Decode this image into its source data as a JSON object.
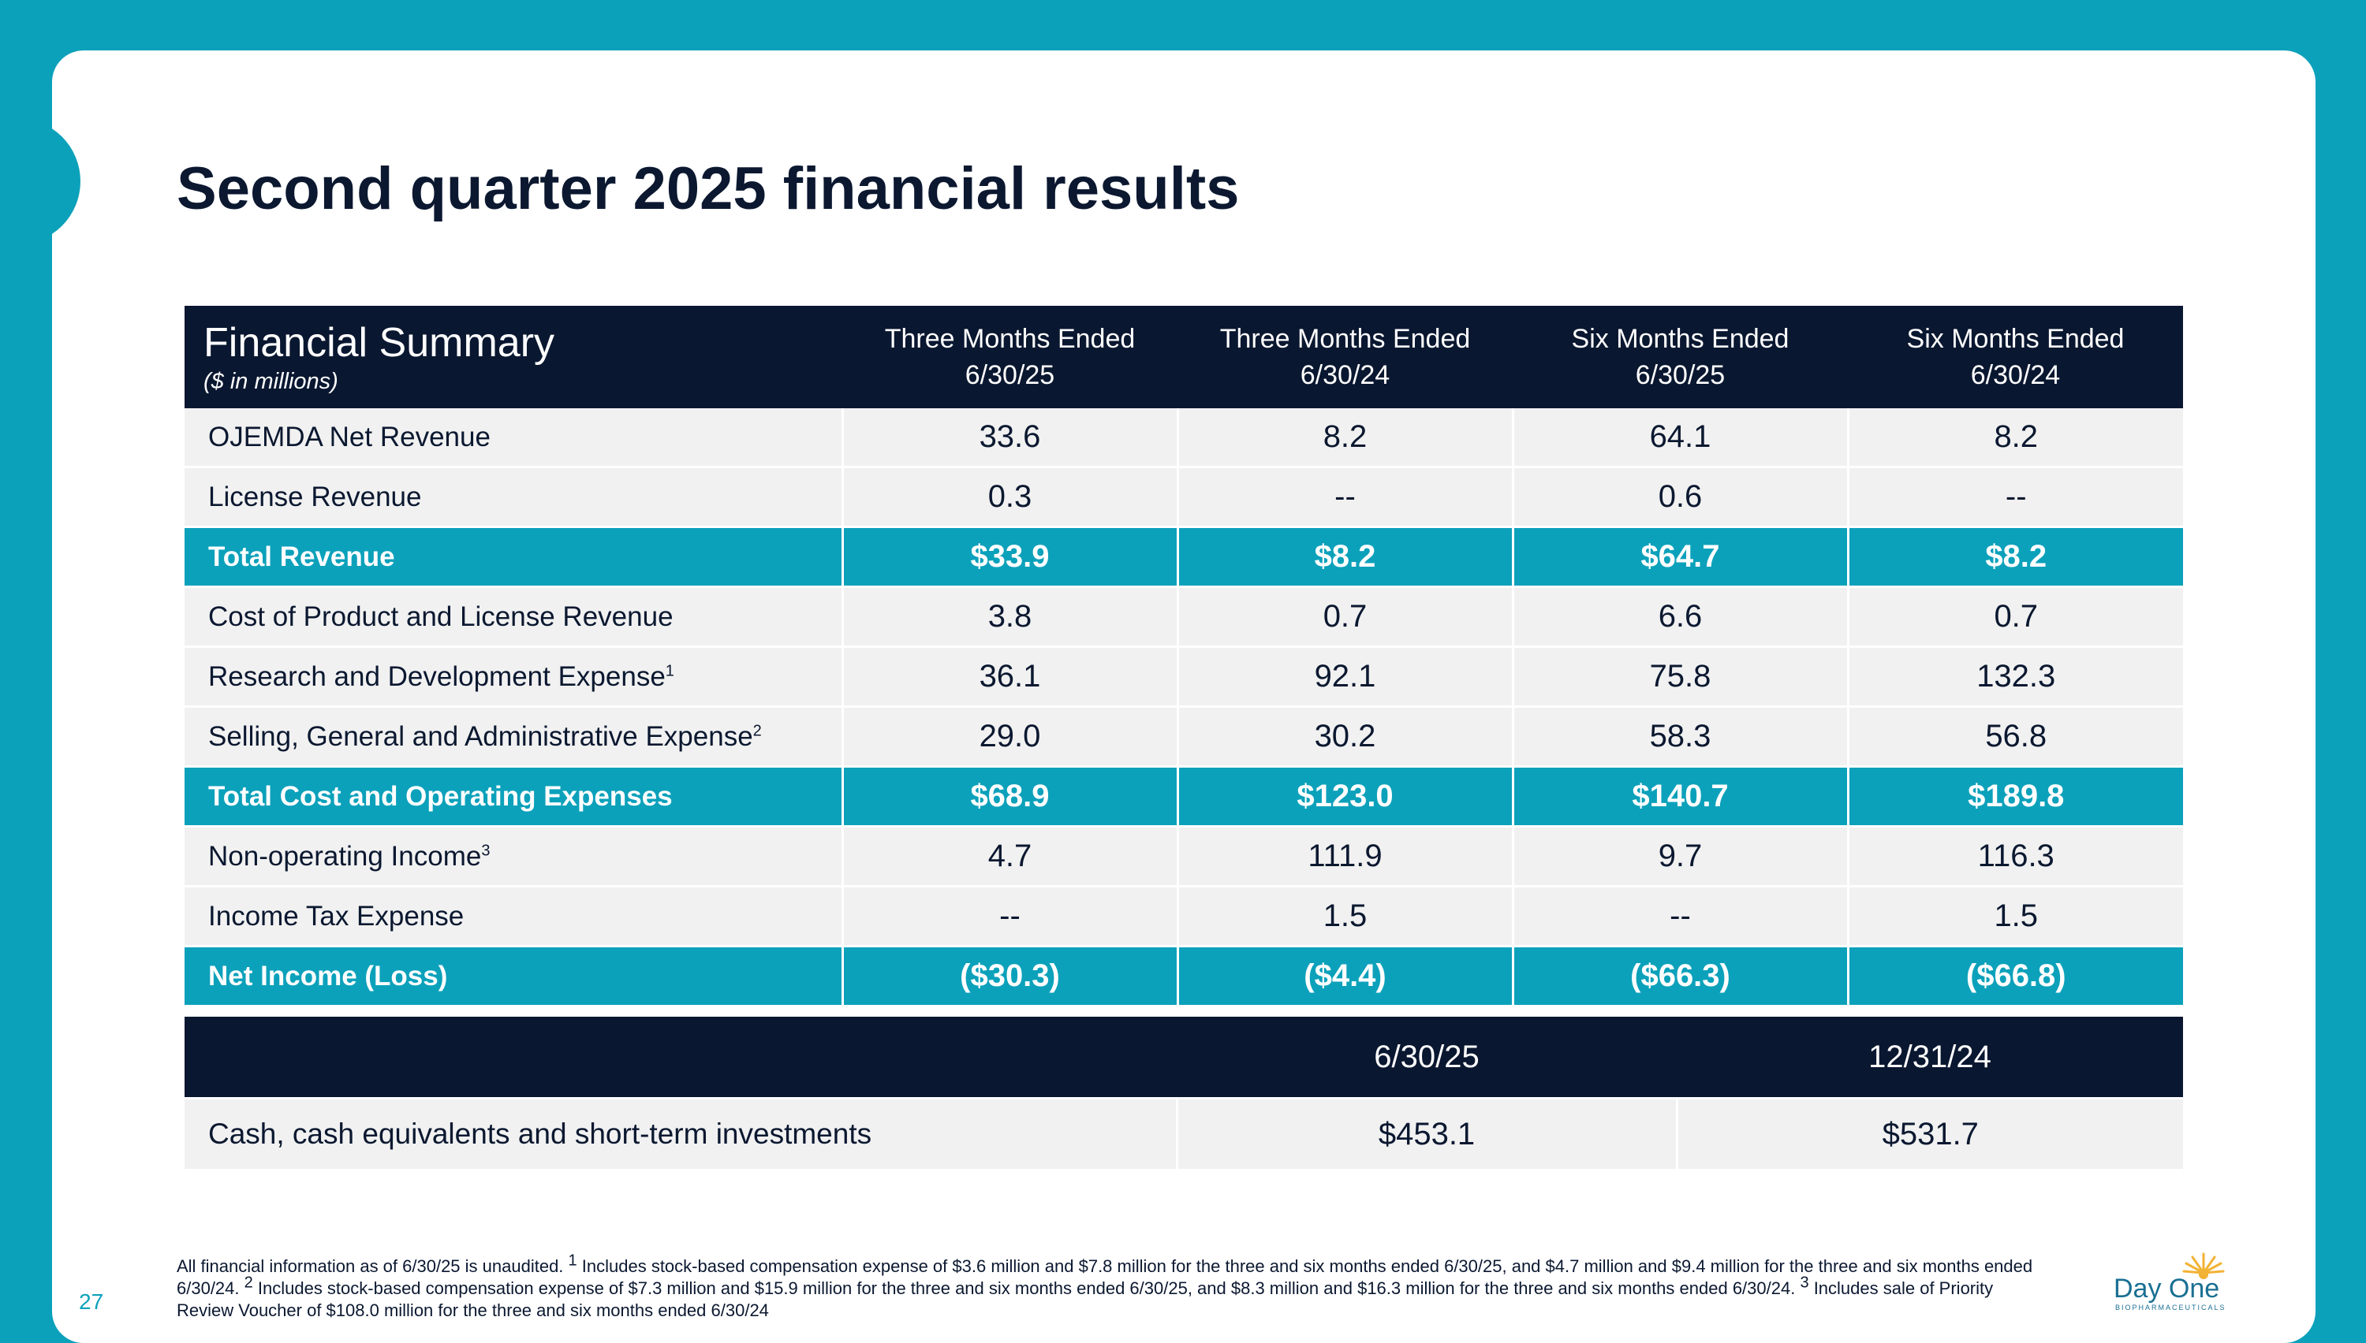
{
  "slide": {
    "title": "Second quarter 2025 financial results",
    "page_number": "27"
  },
  "summary_table": {
    "header_title": "Financial Summary",
    "header_subtitle": "($ in millions)",
    "columns": [
      {
        "line1": "Three Months Ended",
        "line2": "6/30/25"
      },
      {
        "line1": "Three Months Ended",
        "line2": "6/30/24"
      },
      {
        "line1": "Six Months Ended",
        "line2": "6/30/25"
      },
      {
        "line1": "Six Months Ended",
        "line2": "6/30/24"
      }
    ],
    "rows": [
      {
        "label": "OJEMDA Net Revenue",
        "sup": "",
        "highlight": false,
        "values": [
          "33.6",
          "8.2",
          "64.1",
          "8.2"
        ]
      },
      {
        "label": "License Revenue",
        "sup": "",
        "highlight": false,
        "values": [
          "0.3",
          "--",
          "0.6",
          "--"
        ]
      },
      {
        "label": "Total Revenue",
        "sup": "",
        "highlight": true,
        "values": [
          "$33.9",
          "$8.2",
          "$64.7",
          "$8.2"
        ]
      },
      {
        "label": "Cost of Product and License Revenue",
        "sup": "",
        "highlight": false,
        "values": [
          "3.8",
          "0.7",
          "6.6",
          "0.7"
        ]
      },
      {
        "label": "Research and Development Expense",
        "sup": "1",
        "highlight": false,
        "values": [
          "36.1",
          "92.1",
          "75.8",
          "132.3"
        ]
      },
      {
        "label": "Selling, General and Administrative Expense",
        "sup": "2",
        "highlight": false,
        "values": [
          "29.0",
          "30.2",
          "58.3",
          "56.8"
        ]
      },
      {
        "label": "Total Cost and Operating Expenses",
        "sup": "",
        "highlight": true,
        "values": [
          "$68.9",
          "$123.0",
          "$140.7",
          "$189.8"
        ]
      },
      {
        "label": "Non-operating Income",
        "sup": "3",
        "highlight": false,
        "values": [
          "4.7",
          "111.9",
          "9.7",
          "116.3"
        ]
      },
      {
        "label": "Income Tax Expense",
        "sup": "",
        "highlight": false,
        "values": [
          "--",
          "1.5",
          "--",
          "1.5"
        ]
      },
      {
        "label": "Net Income (Loss)",
        "sup": "",
        "highlight": true,
        "values": [
          "($30.3)",
          "($4.4)",
          "($66.3)",
          "($66.8)"
        ]
      }
    ]
  },
  "cash_table": {
    "columns": [
      "6/30/25",
      "12/31/24"
    ],
    "label": "Cash, cash equivalents and short-term investments",
    "values": [
      "$453.1",
      "$531.7"
    ]
  },
  "footnote": {
    "part1": "All financial information as of 6/30/25 is unaudited. ",
    "sup1": "1",
    "part2": " Includes stock-based compensation expense of $3.6 million and $7.8 million for the three and six months ended 6/30/25, and $4.7 million and $9.4 million for the three and six months ended 6/30/24. ",
    "sup2": "2",
    "part3": " Includes stock-based compensation expense of $7.3 million and $15.9 million for the three and six months ended 6/30/25, and $8.3 million and $16.3 million for the three and six months ended 6/30/24. ",
    "sup3": "3",
    "part4": " Includes sale of Priority Review Voucher of $108.0 million for the three and six months ended 6/30/24"
  },
  "logo": {
    "name": "Day One",
    "tagline": "BIOPHARMACEUTICALS",
    "sun_color": "#f2b233",
    "text_color": "#1a6f93"
  },
  "colors": {
    "frame": "#0ca1bb",
    "header_navy": "#0a1730",
    "highlight_teal": "#0ca1bb",
    "row_gray": "#f1f1f1"
  }
}
